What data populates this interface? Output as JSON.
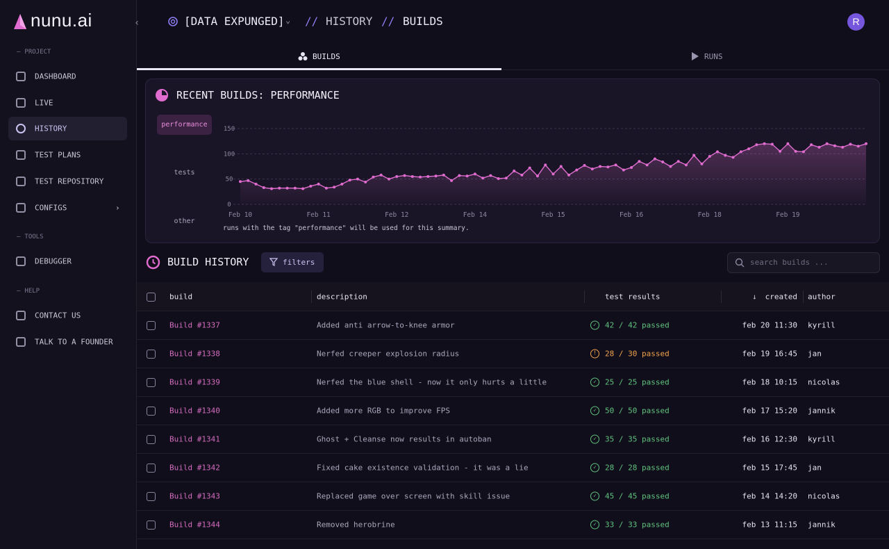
{
  "brand": "nunu.ai",
  "sidebar": {
    "sections": [
      {
        "label": "PROJECT",
        "items": [
          "DASHBOARD",
          "LIVE",
          "HISTORY",
          "TEST PLANS",
          "TEST REPOSITORY",
          "CONFIGS"
        ]
      },
      {
        "label": "TOOLS",
        "items": [
          "DEBUGGER"
        ]
      },
      {
        "label": "HELP",
        "items": [
          "CONTACT US",
          "TALK TO A FOUNDER"
        ]
      }
    ],
    "active": "HISTORY"
  },
  "header": {
    "project": "[DATA EXPUNGED]",
    "separator": "//",
    "crumbs": [
      "HISTORY",
      "BUILDS"
    ],
    "avatar": "R"
  },
  "tabs": [
    "BUILDS",
    "RUNS"
  ],
  "chart": {
    "type": "line",
    "title": "RECENT BUILDS: PERFORMANCE",
    "tags": [
      "performance",
      "tests",
      "other"
    ],
    "caption": "runs with the tag \"performance\" will be used for this summary.",
    "color": "#e06ccf",
    "grid": true,
    "ylim": [
      0,
      150
    ],
    "yticks": [
      0,
      50,
      100,
      150
    ],
    "categories": [
      "Feb 10",
      null,
      null,
      null,
      null,
      null,
      null,
      null,
      null,
      null,
      "Feb 11",
      null,
      null,
      null,
      null,
      null,
      null,
      null,
      null,
      null,
      "Feb 12",
      null,
      null,
      null,
      null,
      null,
      null,
      null,
      null,
      null,
      "Feb 14",
      null,
      null,
      null,
      null,
      null,
      null,
      null,
      null,
      null,
      "Feb 15",
      null,
      null,
      null,
      null,
      null,
      null,
      null,
      null,
      null,
      "Feb 16",
      null,
      null,
      null,
      null,
      null,
      null,
      null,
      null,
      null,
      "Feb 18",
      null,
      null,
      null,
      null,
      null,
      null,
      null,
      null,
      null,
      "Feb 19",
      null,
      null,
      null,
      null,
      null,
      null,
      null,
      null,
      null,
      null
    ],
    "values": [
      45,
      47,
      40,
      33,
      31,
      32,
      32,
      32,
      31,
      36,
      40,
      32,
      34,
      40,
      48,
      50,
      44,
      54,
      58,
      50,
      55,
      57,
      55,
      54,
      55,
      56,
      58,
      47,
      57,
      56,
      60,
      52,
      57,
      51,
      52,
      66,
      58,
      72,
      56,
      78,
      60,
      75,
      58,
      68,
      77,
      70,
      75,
      74,
      78,
      68,
      73,
      85,
      78,
      90,
      84,
      75,
      85,
      78,
      97,
      80,
      95,
      104,
      97,
      93,
      104,
      110,
      118,
      120,
      119,
      105,
      120,
      105,
      104,
      118,
      113,
      120,
      116,
      113,
      119,
      115,
      120
    ]
  },
  "history": {
    "title": "BUILD HISTORY",
    "filters": "filters",
    "search": "search builds ..."
  },
  "table": {
    "columns": [
      "build",
      "description",
      "test results",
      "created",
      "author"
    ],
    "rows": [
      [
        "Build #1337",
        "Added anti arrow-to-knee armor",
        "42 / 42 passed",
        "feb 20 11:30",
        "kyrill"
      ],
      [
        "Build #1338",
        "Nerfed creeper explosion radius",
        "28 / 30 passed",
        "feb 19 16:45",
        "jan"
      ],
      [
        "Build #1339",
        "Nerfed the blue shell - now it only hurts a little",
        "25 / 25 passed",
        "feb 18 10:15",
        "nicolas"
      ],
      [
        "Build #1340",
        "Added more RGB to improve FPS",
        "50 / 50 passed",
        "feb 17 15:20",
        "jannik"
      ],
      [
        "Build #1341",
        "Ghost + Cleanse now results in autoban",
        "35 / 35 passed",
        "feb 16 12:30",
        "kyrill"
      ],
      [
        "Build #1342",
        "Fixed cake existence validation - it was a lie",
        "28 / 28 passed",
        "feb 15 17:45",
        "jan"
      ],
      [
        "Build #1343",
        "Replaced game over screen with skill issue",
        "45 / 45 passed",
        "feb 14 14:20",
        "nicolas"
      ],
      [
        "Build #1344",
        "Removed herobrine",
        "33 / 33 passed",
        "feb 13 11:15",
        "jannik"
      ]
    ],
    "row_status": [
      "pass",
      "warn",
      "pass",
      "pass",
      "pass",
      "pass",
      "pass",
      "pass"
    ]
  }
}
